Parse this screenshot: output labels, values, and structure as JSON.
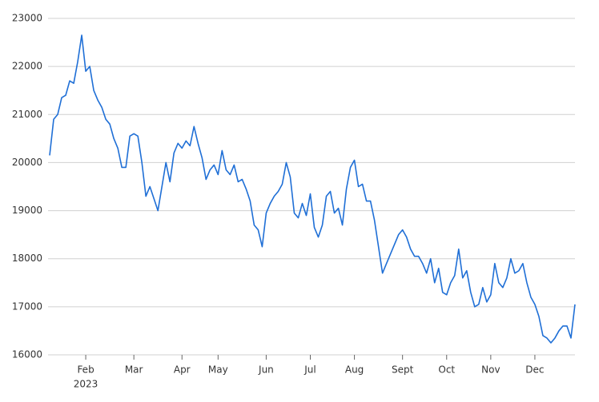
{
  "chart_data": {
    "type": "line",
    "categories": [
      null,
      null,
      null,
      null,
      null,
      null,
      null,
      null,
      null,
      "Feb",
      null,
      null,
      null,
      null,
      null,
      null,
      null,
      null,
      null,
      null,
      null,
      "Mar",
      null,
      null,
      null,
      null,
      null,
      null,
      null,
      null,
      null,
      null,
      null,
      "Apr",
      null,
      null,
      null,
      null,
      null,
      null,
      null,
      null,
      "May",
      null,
      null,
      null,
      null,
      null,
      null,
      null,
      null,
      null,
      null,
      null,
      "Jun",
      null,
      null,
      null,
      null,
      null,
      null,
      null,
      null,
      null,
      null,
      "Jul",
      null,
      null,
      null,
      null,
      null,
      null,
      null,
      null,
      null,
      null,
      "Aug",
      null,
      null,
      null,
      null,
      null,
      null,
      null,
      null,
      null,
      null,
      null,
      "Sept",
      null,
      null,
      null,
      null,
      null,
      null,
      null,
      null,
      null,
      null,
      "Oct",
      null,
      null,
      null,
      null,
      null,
      null,
      null,
      null,
      null,
      null,
      "Nov",
      null,
      null,
      null,
      null,
      null,
      null,
      null,
      null,
      null,
      null,
      "Dec",
      null,
      null,
      null,
      null,
      null,
      null,
      null,
      null,
      null,
      null
    ],
    "x_year_label": "2023",
    "values": [
      20150,
      20900,
      21000,
      21350,
      21400,
      21700,
      21650,
      22100,
      22650,
      21900,
      22000,
      21500,
      21300,
      21150,
      20900,
      20800,
      20500,
      20300,
      19900,
      19900,
      20550,
      20600,
      20550,
      20000,
      19300,
      19500,
      19250,
      19000,
      19500,
      20000,
      19600,
      20200,
      20400,
      20300,
      20450,
      20350,
      20750,
      20400,
      20100,
      19650,
      19850,
      19950,
      19750,
      20250,
      19850,
      19750,
      19950,
      19600,
      19650,
      19450,
      19200,
      18700,
      18600,
      18250,
      18950,
      19150,
      19300,
      19400,
      19550,
      20000,
      19700,
      18950,
      18850,
      19150,
      18900,
      19350,
      18650,
      18450,
      18700,
      19300,
      19400,
      18950,
      19050,
      18700,
      19450,
      19900,
      20050,
      19500,
      19550,
      19200,
      19200,
      18800,
      18250,
      17700,
      17900,
      18100,
      18300,
      18500,
      18600,
      18450,
      18200,
      18050,
      18050,
      17900,
      17700,
      18000,
      17500,
      17800,
      17300,
      17250,
      17500,
      17650,
      18200,
      17600,
      17750,
      17300,
      17000,
      17050,
      17400,
      17100,
      17250,
      17900,
      17500,
      17400,
      17600,
      18000,
      17700,
      17750,
      17900,
      17500,
      17200,
      17050,
      16800,
      16400,
      16350,
      16250,
      16350,
      16500,
      16600,
      16600,
      16350,
      17050
    ],
    "color": "#1f6fd6",
    "ylim": [
      16000,
      23000
    ],
    "yticks": [
      16000,
      17000,
      18000,
      19000,
      20000,
      21000,
      22000,
      23000
    ],
    "grid": true
  }
}
